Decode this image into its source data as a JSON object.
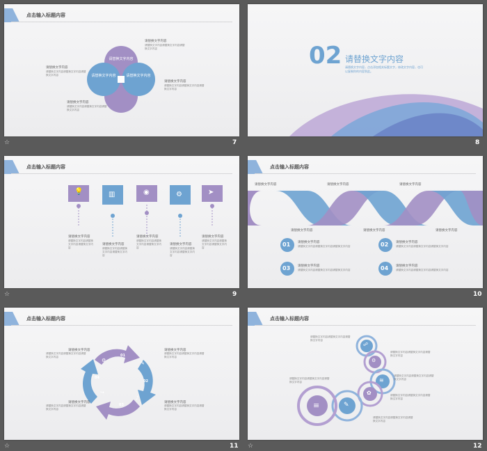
{
  "header_title": "点击输入标题内容",
  "placeholder_text": "请替换文字内容",
  "body_placeholder": "请替换文字内容请替换文字内容请替换文字内容",
  "slides": [
    {
      "page": "7"
    },
    {
      "page": "8",
      "section_number": "02",
      "section_title": "请替换文字内容",
      "section_body": "请替换文字内容，点击添加相关标题文字，修改文字内容，也可以复制你的内容到此。"
    },
    {
      "page": "9"
    },
    {
      "page": "10",
      "items": [
        "01",
        "02",
        "03",
        "04"
      ]
    },
    {
      "page": "11"
    },
    {
      "page": "12"
    }
  ],
  "slide7_circle_label": "请替换文\n字内容",
  "slide10_item_title": "请替换文字内容",
  "slide11_numbers": [
    "01",
    "02",
    "03",
    "04"
  ],
  "colors": {
    "purple": "#a28fc4",
    "blue": "#6ea3d1",
    "accent": "#7aa6d6"
  },
  "icons": [
    "lightbulb-icon",
    "chart-icon",
    "location-icon",
    "gear-icon",
    "send-icon",
    "share-icon",
    "gears-icon",
    "wifi-icon",
    "plant-icon",
    "database-icon",
    "edit-icon"
  ]
}
